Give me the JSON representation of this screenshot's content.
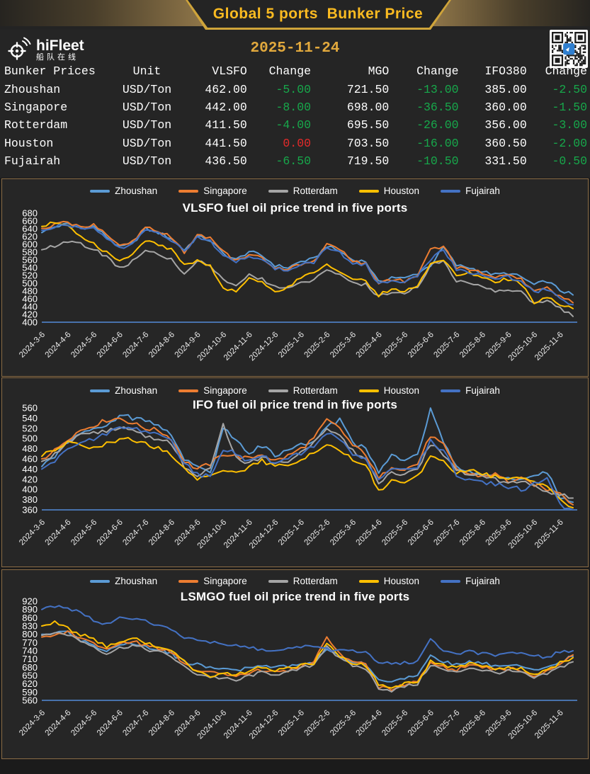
{
  "header": {
    "title": "Global 5 ports  Bunker Price",
    "date": "2025-11-24"
  },
  "logo": {
    "name": "hiFleet",
    "subtitle": "船队在线"
  },
  "colors": {
    "accent_gold": "#fbbb21",
    "date_gold": "#e2a93d",
    "change_negative_green": "#17a84b",
    "change_zero_red": "#e42a2a",
    "panel_border": "#8a6c46",
    "axis_baseline": "#4e7dc0"
  },
  "table": {
    "columns": [
      "Bunker Prices",
      "Unit",
      "VLSFO",
      "Change",
      "MGO",
      "Change",
      "IFO380",
      "Change"
    ],
    "rows": [
      {
        "port": "Zhoushan",
        "unit": "USD/Ton",
        "vlsfo": "462.00",
        "vlsfo_change": "-5.00",
        "mgo": "721.50",
        "mgo_change": "-13.00",
        "ifo380": "385.00",
        "ifo380_change": "-2.50"
      },
      {
        "port": "Singapore",
        "unit": "USD/Ton",
        "vlsfo": "442.00",
        "vlsfo_change": "-8.00",
        "mgo": "698.00",
        "mgo_change": "-36.50",
        "ifo380": "360.00",
        "ifo380_change": "-1.50"
      },
      {
        "port": "Rotterdam",
        "unit": "USD/Ton",
        "vlsfo": "411.50",
        "vlsfo_change": "-4.00",
        "mgo": "695.50",
        "mgo_change": "-26.00",
        "ifo380": "356.00",
        "ifo380_change": "-3.00"
      },
      {
        "port": "Houston",
        "unit": "USD/Ton",
        "vlsfo": "441.50",
        "vlsfo_change": "0.00",
        "mgo": "703.50",
        "mgo_change": "-16.00",
        "ifo380": "360.50",
        "ifo380_change": "-2.00"
      },
      {
        "port": "Fujairah",
        "unit": "USD/Ton",
        "vlsfo": "436.50",
        "vlsfo_change": "-6.50",
        "mgo": "719.50",
        "mgo_change": "-10.50",
        "ifo380": "331.50",
        "ifo380_change": "-0.50"
      }
    ]
  },
  "chart_data": [
    {
      "type": "line",
      "title": "VLSFO fuel oil price trend in five ports",
      "xlabel": "",
      "ylabel": "",
      "ylim": [
        400,
        680
      ],
      "ytick_step": 20,
      "grid": false,
      "legend_position": "top",
      "x_labels": [
        "2024-3-6",
        "2024-4-6",
        "2024-5-6",
        "2024-6-6",
        "2024-7-6",
        "2024-8-6",
        "2024-9-6",
        "2024-10-6",
        "2024-11-6",
        "2024-12-6",
        "2025-1-6",
        "2025-2-6",
        "2025-3-6",
        "2025-4-6",
        "2025-5-6",
        "2025-6-6",
        "2025-7-6",
        "2025-8-6",
        "2025-9-6",
        "2025-10-6",
        "2025-11-6"
      ],
      "series": [
        {
          "name": "Zhoushan",
          "color": "#5B9BD5",
          "values": [
            630,
            645,
            652,
            642,
            646,
            620,
            592,
            602,
            640,
            630,
            615,
            585,
            620,
            610,
            576,
            560,
            582,
            570,
            546,
            540,
            556,
            562,
            596,
            582,
            560,
            556,
            502,
            516,
            512,
            526,
            546,
            592,
            546,
            540,
            530,
            522,
            526,
            516,
            496,
            506,
            482,
            470
          ]
        },
        {
          "name": "Singapore",
          "color": "#ED7D31",
          "values": [
            641,
            650,
            656,
            646,
            650,
            625,
            596,
            606,
            645,
            635,
            620,
            580,
            625,
            615,
            580,
            556,
            576,
            566,
            540,
            536,
            550,
            556,
            600,
            586,
            556,
            550,
            496,
            510,
            506,
            520,
            586,
            596,
            540,
            536,
            526,
            516,
            520,
            510,
            480,
            490,
            466,
            450
          ]
        },
        {
          "name": "Rotterdam",
          "color": "#A5A5A5",
          "values": [
            586,
            596,
            606,
            600,
            590,
            566,
            540,
            556,
            586,
            576,
            560,
            520,
            556,
            546,
            510,
            496,
            520,
            510,
            490,
            486,
            500,
            510,
            536,
            520,
            500,
            496,
            466,
            480,
            476,
            490,
            546,
            556,
            506,
            500,
            490,
            480,
            486,
            476,
            450,
            456,
            436,
            415
          ]
        },
        {
          "name": "Houston",
          "color": "#FFC000",
          "values": [
            646,
            656,
            650,
            620,
            600,
            580,
            560,
            576,
            610,
            600,
            586,
            546,
            560,
            546,
            490,
            476,
            510,
            500,
            480,
            490,
            516,
            526,
            546,
            530,
            510,
            506,
            470,
            486,
            480,
            496,
            550,
            560,
            516,
            526,
            516,
            506,
            510,
            500,
            446,
            466,
            446,
            435
          ]
        },
        {
          "name": "Fujairah",
          "color": "#4472C4",
          "values": [
            636,
            646,
            651,
            641,
            645,
            618,
            589,
            599,
            638,
            628,
            612,
            582,
            618,
            608,
            572,
            552,
            572,
            562,
            538,
            532,
            548,
            552,
            592,
            578,
            552,
            548,
            496,
            508,
            502,
            518,
            560,
            586,
            536,
            530,
            520,
            510,
            516,
            506,
            476,
            486,
            460,
            445
          ]
        }
      ]
    },
    {
      "type": "line",
      "title": "IFO fuel oil price trend in five ports",
      "xlabel": "",
      "ylabel": "",
      "ylim": [
        360,
        560
      ],
      "ytick_step": 20,
      "grid": false,
      "legend_position": "top",
      "x_labels": [
        "2024-3-6",
        "2024-4-6",
        "2024-5-6",
        "2024-6-6",
        "2024-7-6",
        "2024-8-6",
        "2024-9-6",
        "2024-10-6",
        "2024-11-6",
        "2024-12-6",
        "2025-1-6",
        "2025-2-6",
        "2025-3-6",
        "2025-4-6",
        "2025-5-6",
        "2025-6-6",
        "2025-7-6",
        "2025-8-6",
        "2025-9-6",
        "2025-10-6",
        "2025-11-6"
      ],
      "series": [
        {
          "name": "Zhoushan",
          "color": "#5B9BD5",
          "values": [
            445,
            465,
            495,
            510,
            516,
            526,
            546,
            540,
            536,
            526,
            506,
            460,
            445,
            430,
            520,
            500,
            470,
            486,
            466,
            476,
            486,
            496,
            526,
            536,
            490,
            480,
            436,
            466,
            456,
            466,
            556,
            496,
            446,
            436,
            430,
            426,
            420,
            416,
            426,
            436,
            386,
            375
          ]
        },
        {
          "name": "Singapore",
          "color": "#ED7D31",
          "values": [
            460,
            476,
            500,
            516,
            526,
            536,
            540,
            530,
            520,
            516,
            500,
            456,
            440,
            450,
            470,
            466,
            460,
            470,
            456,
            466,
            480,
            500,
            536,
            520,
            486,
            470,
            420,
            446,
            440,
            450,
            506,
            486,
            440,
            430,
            426,
            430,
            416,
            420,
            410,
            400,
            396,
            370
          ]
        },
        {
          "name": "Rotterdam",
          "color": "#A5A5A5",
          "values": [
            455,
            470,
            495,
            506,
            510,
            516,
            520,
            516,
            506,
            500,
            490,
            446,
            425,
            440,
            530,
            460,
            450,
            466,
            450,
            456,
            470,
            490,
            516,
            506,
            476,
            460,
            410,
            436,
            430,
            440,
            490,
            470,
            436,
            430,
            426,
            420,
            410,
            416,
            406,
            396,
            390,
            383
          ]
        },
        {
          "name": "Houston",
          "color": "#FFC000",
          "values": [
            465,
            480,
            490,
            486,
            480,
            490,
            500,
            496,
            490,
            480,
            470,
            440,
            420,
            430,
            440,
            430,
            446,
            456,
            446,
            450,
            460,
            470,
            490,
            480,
            460,
            450,
            396,
            420,
            416,
            426,
            466,
            456,
            430,
            440,
            430,
            426,
            420,
            426,
            416,
            406,
            380,
            364
          ]
        },
        {
          "name": "Fujairah",
          "color": "#4472C4",
          "values": [
            440,
            456,
            480,
            496,
            500,
            510,
            526,
            520,
            516,
            506,
            496,
            450,
            430,
            425,
            480,
            470,
            456,
            466,
            450,
            460,
            470,
            486,
            510,
            500,
            470,
            460,
            416,
            440,
            436,
            446,
            496,
            476,
            430,
            420,
            416,
            410,
            406,
            400,
            410,
            420,
            370,
            360
          ]
        }
      ]
    },
    {
      "type": "line",
      "title": "LSMGO fuel oil price trend in five ports",
      "xlabel": "",
      "ylabel": "",
      "ylim": [
        560,
        920
      ],
      "ytick_step": 30,
      "grid": false,
      "legend_position": "top",
      "x_labels": [
        "2024-3-6",
        "2024-4-6",
        "2024-5-6",
        "2024-6-6",
        "2024-7-6",
        "2024-8-6",
        "2024-9-6",
        "2024-10-6",
        "2024-11-6",
        "2024-12-6",
        "2025-1-6",
        "2025-2-6",
        "2025-3-6",
        "2025-4-6",
        "2025-5-6",
        "2025-6-6",
        "2025-7-6",
        "2025-8-6",
        "2025-9-6",
        "2025-10-6",
        "2025-11-6"
      ],
      "series": [
        {
          "name": "Zhoushan",
          "color": "#5B9BD5",
          "values": [
            800,
            810,
            806,
            780,
            760,
            740,
            760,
            770,
            756,
            746,
            730,
            700,
            690,
            680,
            676,
            666,
            680,
            690,
            680,
            686,
            696,
            700,
            750,
            720,
            700,
            690,
            640,
            630,
            640,
            650,
            720,
            700,
            690,
            700,
            696,
            686,
            690,
            686,
            666,
            680,
            700,
            720
          ]
        },
        {
          "name": "Singapore",
          "color": "#ED7D31",
          "values": [
            790,
            800,
            810,
            786,
            766,
            746,
            766,
            776,
            760,
            750,
            736,
            690,
            670,
            660,
            656,
            646,
            660,
            670,
            666,
            670,
            686,
            700,
            790,
            730,
            700,
            690,
            610,
            600,
            616,
            626,
            700,
            680,
            670,
            690,
            680,
            670,
            676,
            670,
            650,
            666,
            690,
            725
          ]
        },
        {
          "name": "Rotterdam",
          "color": "#A5A5A5",
          "values": [
            796,
            806,
            800,
            776,
            756,
            730,
            750,
            760,
            746,
            736,
            720,
            680,
            656,
            646,
            640,
            630,
            650,
            660,
            656,
            660,
            676,
            690,
            760,
            710,
            686,
            676,
            606,
            596,
            610,
            620,
            690,
            670,
            660,
            680,
            670,
            660,
            666,
            660,
            640,
            656,
            680,
            700
          ]
        },
        {
          "name": "Houston",
          "color": "#FFC000",
          "values": [
            830,
            846,
            820,
            800,
            780,
            756,
            770,
            786,
            770,
            756,
            740,
            700,
            666,
            650,
            660,
            650,
            670,
            680,
            670,
            676,
            686,
            696,
            770,
            720,
            696,
            686,
            616,
            606,
            620,
            630,
            700,
            686,
            676,
            696,
            686,
            676,
            680,
            676,
            656,
            670,
            696,
            715
          ]
        },
        {
          "name": "Fujairah",
          "color": "#4472C4",
          "values": [
            890,
            900,
            896,
            880,
            850,
            836,
            856,
            860,
            846,
            830,
            820,
            790,
            780,
            770,
            766,
            756,
            750,
            746,
            740,
            746,
            756,
            750,
            746,
            740,
            740,
            736,
            700,
            690,
            696,
            700,
            790,
            740,
            730,
            736,
            730,
            726,
            736,
            730,
            720,
            716,
            736,
            740
          ]
        }
      ]
    }
  ]
}
